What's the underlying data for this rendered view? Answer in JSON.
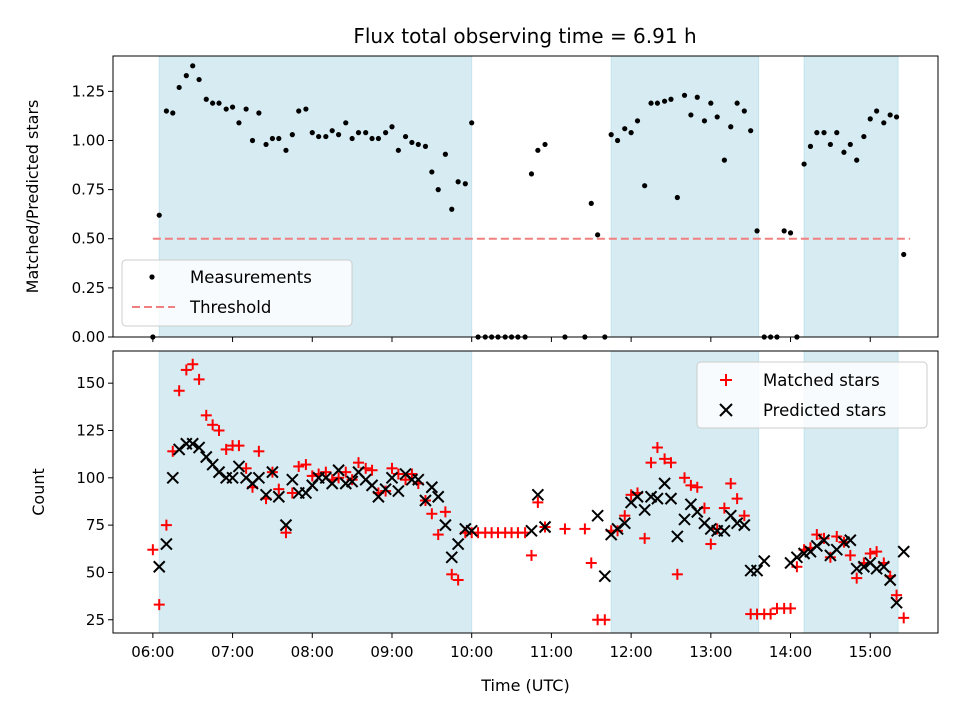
{
  "chart_data": [
    {
      "type": "scatter",
      "title": "Flux total observing time = 6.91 h",
      "ylabel": "Matched/Predicted stars",
      "xlim": [
        5.5,
        15.85
      ],
      "ylim": [
        0,
        1.43
      ],
      "yticks": [
        0.0,
        0.25,
        0.5,
        0.75,
        1.0,
        1.25
      ],
      "ytick_labels": [
        "0.00",
        "0.25",
        "0.50",
        "0.75",
        "1.00",
        "1.25"
      ],
      "shaded_intervals": [
        [
          6.08,
          10.0
        ],
        [
          11.75,
          13.6
        ],
        [
          14.17,
          15.35
        ]
      ],
      "legend_position": "lower-left",
      "series": [
        {
          "name": "Measurements",
          "marker": "dot",
          "color": "#000000",
          "x": [
            6.0,
            6.08,
            6.17,
            6.25,
            6.33,
            6.42,
            6.5,
            6.58,
            6.67,
            6.75,
            6.83,
            6.92,
            7.0,
            7.08,
            7.17,
            7.25,
            7.33,
            7.42,
            7.5,
            7.58,
            7.67,
            7.75,
            7.83,
            7.92,
            8.0,
            8.08,
            8.17,
            8.25,
            8.33,
            8.42,
            8.5,
            8.58,
            8.67,
            8.75,
            8.83,
            8.92,
            9.0,
            9.08,
            9.17,
            9.25,
            9.33,
            9.42,
            9.5,
            9.58,
            9.67,
            9.75,
            9.83,
            9.92,
            10.0,
            10.08,
            10.17,
            10.25,
            10.33,
            10.42,
            10.5,
            10.58,
            10.67,
            10.75,
            10.83,
            10.92,
            11.17,
            11.42,
            11.5,
            11.58,
            11.67,
            11.75,
            11.83,
            11.92,
            12.0,
            12.08,
            12.17,
            12.25,
            12.33,
            12.42,
            12.5,
            12.58,
            12.67,
            12.75,
            12.83,
            12.92,
            13.0,
            13.08,
            13.17,
            13.25,
            13.33,
            13.42,
            13.5,
            13.58,
            13.67,
            13.75,
            13.83,
            13.92,
            14.0,
            14.08,
            14.17,
            14.25,
            14.33,
            14.42,
            14.5,
            14.58,
            14.67,
            14.75,
            14.83,
            14.92,
            15.0,
            15.08,
            15.17,
            15.25,
            15.33,
            15.42
          ],
          "y": [
            0.0,
            0.62,
            1.15,
            1.14,
            1.27,
            1.33,
            1.38,
            1.31,
            1.21,
            1.19,
            1.19,
            1.16,
            1.17,
            1.09,
            1.16,
            1.0,
            1.14,
            0.98,
            1.01,
            1.01,
            0.95,
            1.03,
            1.15,
            1.16,
            1.04,
            1.02,
            1.02,
            1.05,
            1.03,
            1.09,
            1.01,
            1.04,
            1.04,
            1.01,
            1.01,
            1.04,
            1.07,
            0.95,
            1.02,
            0.99,
            0.98,
            0.97,
            0.84,
            0.75,
            0.93,
            0.65,
            0.79,
            0.78,
            1.09,
            0.0,
            0.0,
            0.0,
            0.0,
            0.0,
            0.0,
            0.0,
            0.0,
            0.83,
            0.95,
            0.98,
            0.0,
            0.0,
            0.68,
            0.52,
            0.0,
            1.03,
            1.0,
            1.06,
            1.04,
            1.1,
            0.77,
            1.19,
            1.19,
            1.2,
            1.21,
            0.71,
            1.23,
            1.13,
            1.22,
            1.1,
            1.19,
            1.12,
            0.9,
            1.07,
            1.19,
            1.15,
            1.05,
            0.54,
            0.0,
            0.0,
            0.0,
            0.54,
            0.53,
            0.0,
            0.88,
            0.97,
            1.04,
            1.04,
            0.98,
            1.04,
            0.94,
            0.98,
            0.9,
            1.02,
            1.11,
            1.15,
            1.09,
            1.13,
            1.12,
            0.42
          ]
        },
        {
          "name": "Threshold",
          "style": "dashed-line",
          "color": "#f08080",
          "x": [
            6.0,
            15.5
          ],
          "y": [
            0.5,
            0.5
          ]
        }
      ]
    },
    {
      "type": "scatter",
      "xlabel": "Time (UTC)",
      "ylabel": "Count",
      "xlim": [
        5.5,
        15.85
      ],
      "ylim": [
        18,
        167
      ],
      "xticks": [
        6,
        7,
        8,
        9,
        10,
        11,
        12,
        13,
        14,
        15
      ],
      "xtick_labels": [
        "06:00",
        "07:00",
        "08:00",
        "09:00",
        "10:00",
        "11:00",
        "12:00",
        "13:00",
        "14:00",
        "15:00"
      ],
      "yticks": [
        25,
        50,
        75,
        100,
        125,
        150
      ],
      "ytick_labels": [
        "25",
        "50",
        "75",
        "100",
        "125",
        "150"
      ],
      "shaded_intervals": [
        [
          6.08,
          10.0
        ],
        [
          11.75,
          13.6
        ],
        [
          14.17,
          15.35
        ]
      ],
      "legend_position": "upper-right",
      "series": [
        {
          "name": "Matched stars",
          "marker": "plus",
          "color": "#ff0000",
          "x": [
            6.0,
            6.08,
            6.17,
            6.25,
            6.33,
            6.42,
            6.5,
            6.58,
            6.67,
            6.75,
            6.83,
            6.92,
            7.0,
            7.08,
            7.17,
            7.25,
            7.33,
            7.42,
            7.5,
            7.58,
            7.67,
            7.75,
            7.83,
            7.92,
            8.0,
            8.08,
            8.17,
            8.25,
            8.33,
            8.42,
            8.5,
            8.58,
            8.67,
            8.75,
            8.83,
            8.92,
            9.0,
            9.08,
            9.17,
            9.25,
            9.33,
            9.42,
            9.5,
            9.58,
            9.67,
            9.75,
            9.83,
            9.92,
            10.0,
            10.08,
            10.17,
            10.25,
            10.33,
            10.42,
            10.5,
            10.58,
            10.67,
            10.75,
            10.83,
            10.92,
            11.17,
            11.42,
            11.5,
            11.58,
            11.67,
            11.75,
            11.83,
            11.92,
            12.0,
            12.08,
            12.17,
            12.25,
            12.33,
            12.42,
            12.5,
            12.58,
            12.67,
            12.75,
            12.83,
            12.92,
            13.0,
            13.08,
            13.17,
            13.25,
            13.33,
            13.42,
            13.5,
            13.58,
            13.67,
            13.75,
            13.83,
            13.92,
            14.0,
            14.08,
            14.17,
            14.25,
            14.33,
            14.42,
            14.5,
            14.58,
            14.67,
            14.75,
            14.83,
            14.92,
            15.0,
            15.08,
            15.17,
            15.25,
            15.33,
            15.42
          ],
          "y": [
            62,
            33,
            75,
            114,
            146,
            157,
            160,
            152,
            133,
            128,
            125,
            115,
            117,
            117,
            105,
            95,
            114,
            89,
            103,
            94,
            71,
            92,
            106,
            107,
            101,
            102,
            103,
            99,
            100,
            103,
            99,
            108,
            105,
            104,
            92,
            93,
            105,
            102,
            99,
            102,
            97,
            88,
            81,
            70,
            82,
            49,
            46,
            71,
            71,
            71,
            71,
            71,
            71,
            71,
            71,
            71,
            71,
            59,
            87,
            74,
            73,
            73,
            55,
            25,
            25,
            72,
            72,
            80,
            91,
            92,
            68,
            108,
            116,
            110,
            108,
            49,
            100,
            96,
            95,
            84,
            65,
            73,
            84,
            97,
            89,
            80,
            28,
            28,
            28,
            28,
            31,
            31,
            31,
            53,
            62,
            63,
            70,
            68,
            58,
            69,
            66,
            59,
            47,
            55,
            60,
            61,
            55,
            48,
            38,
            26
          ]
        },
        {
          "name": "Predicted stars",
          "marker": "x",
          "color": "#000000",
          "x": [
            6.08,
            6.17,
            6.25,
            6.33,
            6.42,
            6.5,
            6.58,
            6.67,
            6.75,
            6.83,
            6.92,
            7.0,
            7.08,
            7.17,
            7.25,
            7.33,
            7.42,
            7.5,
            7.58,
            7.67,
            7.75,
            7.83,
            7.92,
            8.0,
            8.08,
            8.17,
            8.25,
            8.33,
            8.42,
            8.5,
            8.58,
            8.67,
            8.75,
            8.83,
            8.92,
            9.0,
            9.08,
            9.17,
            9.25,
            9.33,
            9.42,
            9.5,
            9.58,
            9.67,
            9.75,
            9.83,
            9.92,
            10.0,
            10.75,
            10.83,
            10.92,
            11.58,
            11.67,
            11.75,
            11.83,
            11.92,
            12.0,
            12.08,
            12.17,
            12.25,
            12.33,
            12.42,
            12.5,
            12.58,
            12.67,
            12.75,
            12.83,
            12.92,
            13.0,
            13.08,
            13.17,
            13.25,
            13.33,
            13.42,
            13.5,
            13.58,
            13.67,
            14.0,
            14.08,
            14.17,
            14.25,
            14.33,
            14.42,
            14.5,
            14.58,
            14.67,
            14.75,
            14.83,
            14.92,
            15.0,
            15.08,
            15.17,
            15.25,
            15.33,
            15.42
          ],
          "y": [
            53,
            65,
            100,
            115,
            118,
            118,
            116,
            111,
            107,
            103,
            100,
            100,
            106,
            100,
            97,
            100,
            91,
            103,
            90,
            75,
            99,
            92,
            92,
            96,
            100,
            100,
            97,
            104,
            97,
            98,
            103,
            99,
            96,
            90,
            94,
            100,
            93,
            102,
            99,
            99,
            88,
            95,
            90,
            75,
            58,
            65,
            73,
            72,
            72,
            91,
            74,
            80,
            48,
            70,
            73,
            76,
            87,
            90,
            83,
            90,
            89,
            97,
            89,
            69,
            78,
            86,
            82,
            76,
            73,
            72,
            72,
            80,
            76,
            75,
            51,
            51,
            56,
            55,
            58,
            60,
            61,
            64,
            67,
            59,
            62,
            66,
            67,
            52,
            53,
            55,
            52,
            53,
            46,
            34,
            61
          ]
        }
      ]
    }
  ]
}
